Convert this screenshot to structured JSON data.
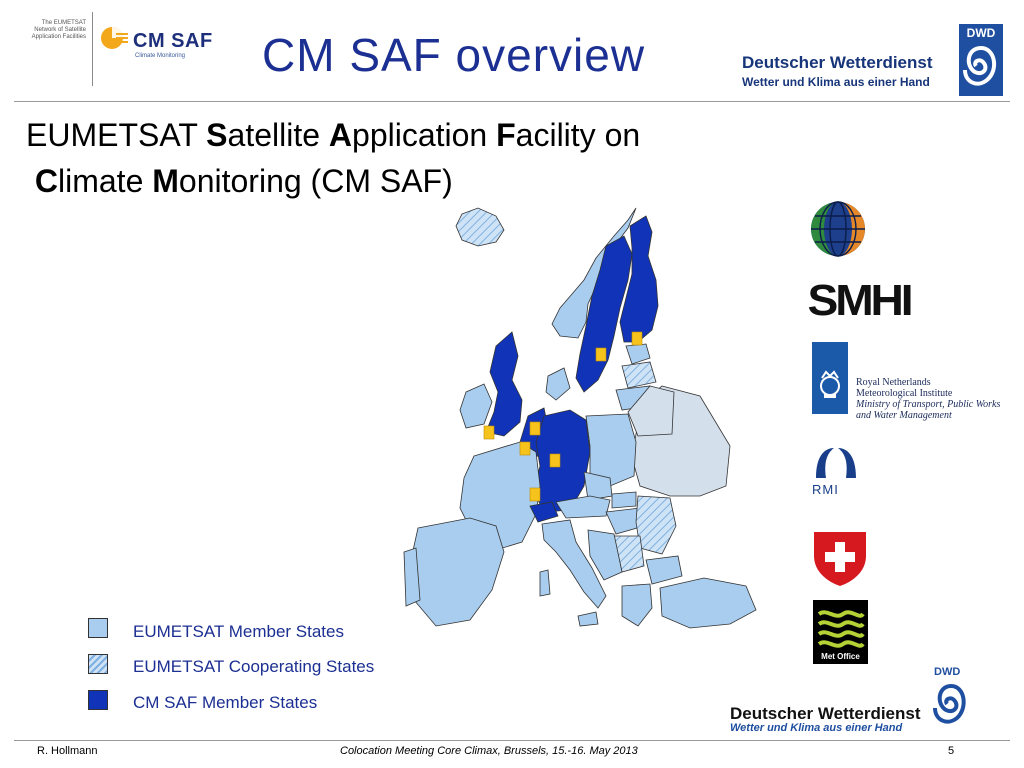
{
  "header": {
    "network_text": "The EUMETSAT Network of Satellite Application Facilities",
    "cmsaf_name": "CM SAF",
    "cmsaf_sub": "Climate Monitoring",
    "title": "CM SAF overview",
    "dwd_line1": "Deutscher Wetterdienst",
    "dwd_line2": "Wetter und Klima aus einer Hand",
    "dwd_abbr": "DWD"
  },
  "subtitle": {
    "w1": "EUMETSAT ",
    "s": "S",
    "w2": "atellite ",
    "a": "A",
    "w3": "pplication ",
    "f": "F",
    "w4": "acility on",
    "c": "C",
    "w5": "limate ",
    "m": "M",
    "w6": "onitoring (CM SAF)"
  },
  "legend": {
    "items": [
      {
        "label": "EUMETSAT Member States",
        "color": "#a9cdee"
      },
      {
        "label": "EUMETSAT Cooperating States",
        "color": "#b8d6f0"
      },
      {
        "label": "CM SAF Member States",
        "color": "#1033b8"
      }
    ]
  },
  "map_colors": {
    "member": "#a9cdee",
    "cmsaf": "#1033b8",
    "other": "#d4dfec",
    "site_marker": "#f6c21c"
  },
  "logos": {
    "smhi": "SMHI",
    "knmi_lines": [
      "Royal Netherlands",
      "Meteorological Institute",
      "Ministry of Transport, Public Works",
      "and Water Management"
    ],
    "rmi": "RMI",
    "metoffice": "Met Office",
    "dwd_line1": "Deutscher Wetterdienst",
    "dwd_line2": "Wetter und Klima aus einer Hand",
    "dwd_abbr": "DWD"
  },
  "footer": {
    "author": "R. Hollmann",
    "event": "Colocation Meeting Core Climax, Brussels, 15.-16. May 2013",
    "page": "5"
  }
}
